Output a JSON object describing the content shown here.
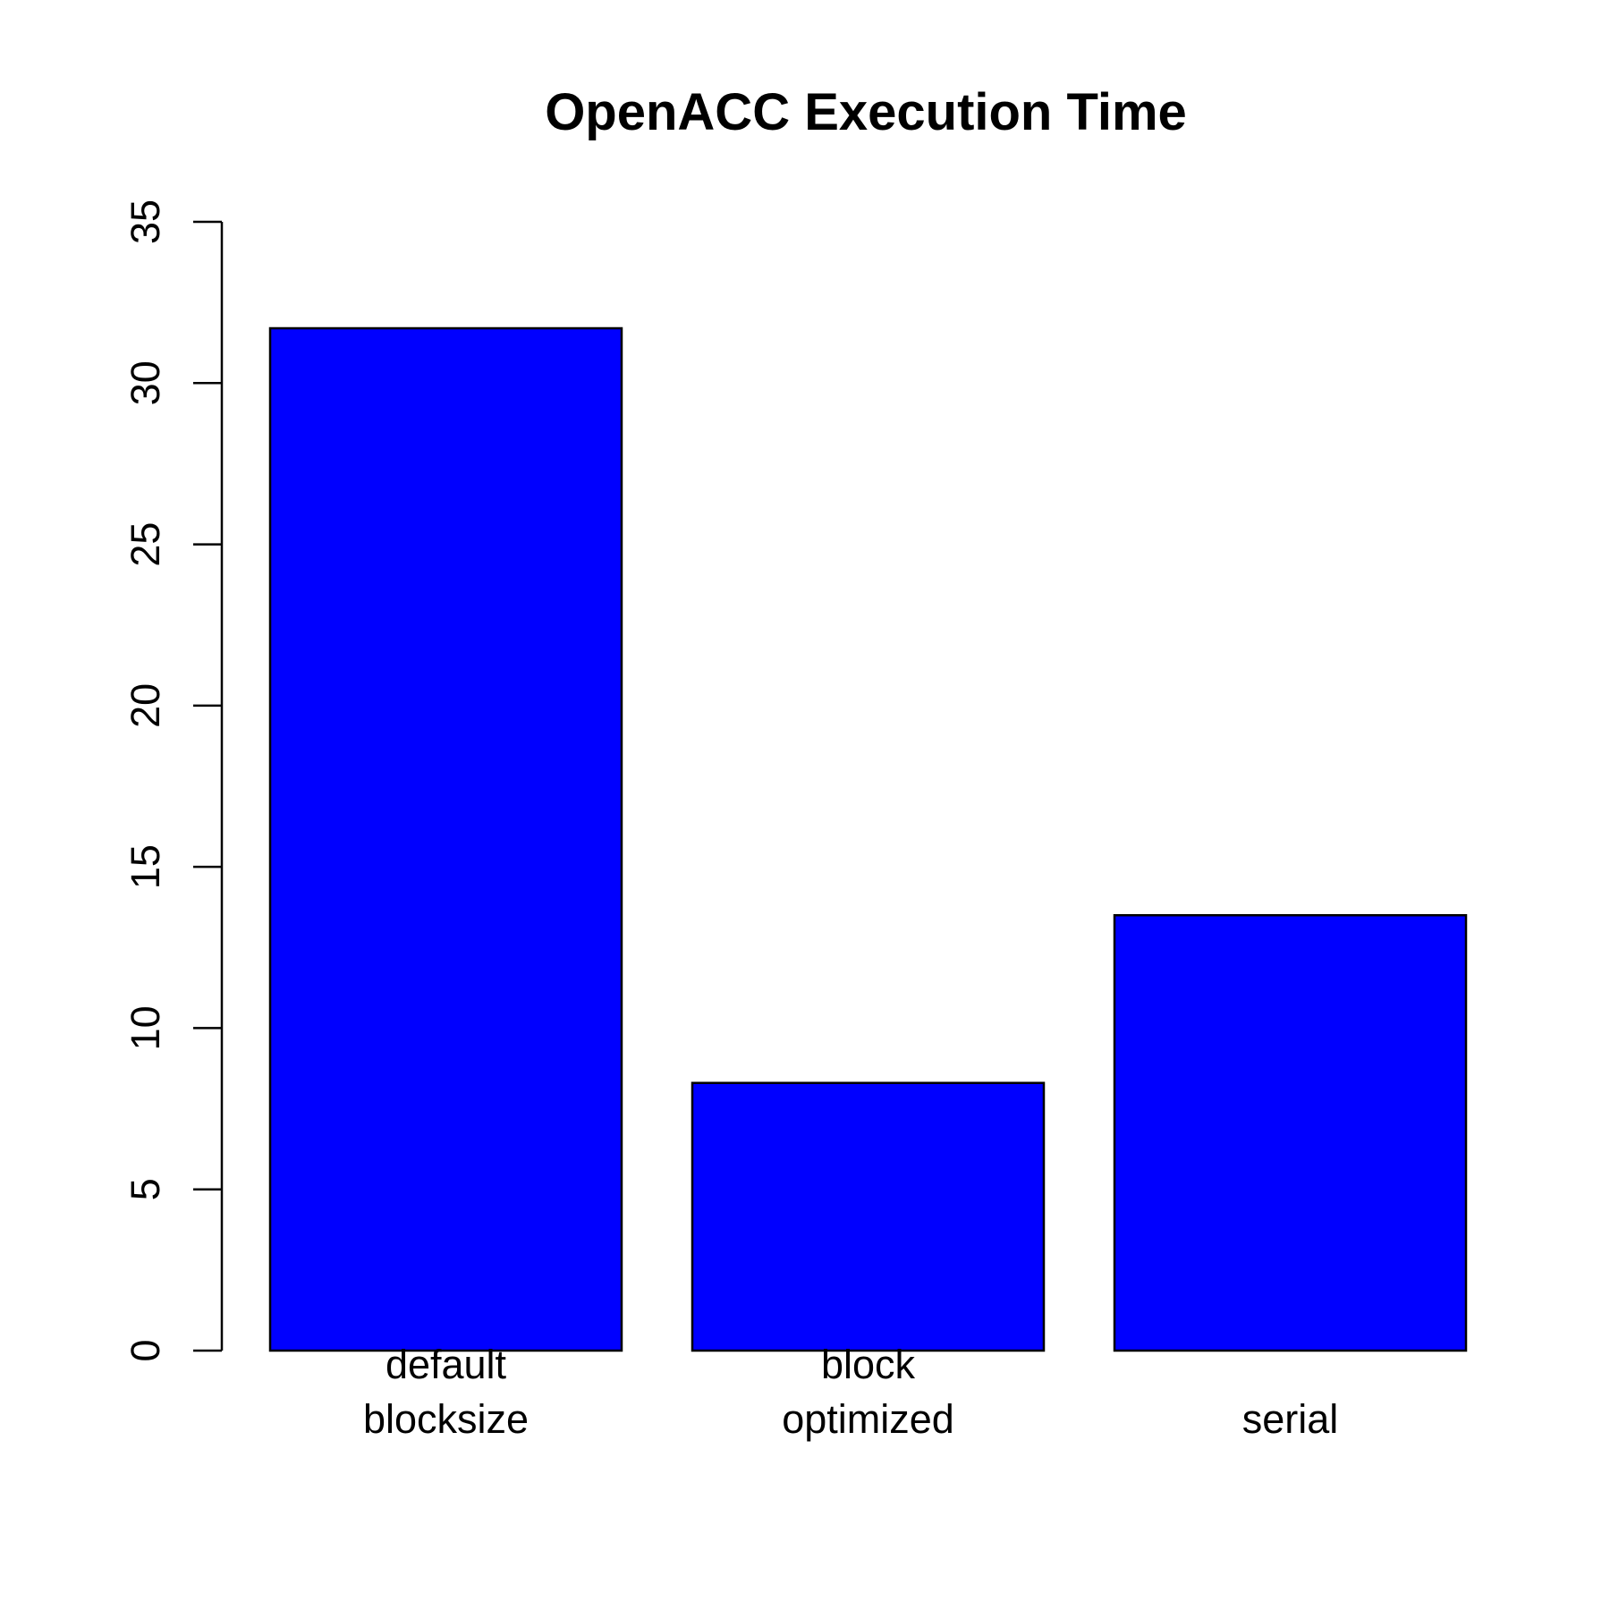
{
  "chart_data": {
    "type": "bar",
    "title": "OpenACC Execution Time",
    "xlabel": "",
    "ylabel": "",
    "categories": [
      [
        "default",
        "blocksize"
      ],
      [
        "block",
        "optimized"
      ],
      [
        "serial"
      ]
    ],
    "values": [
      31.7,
      8.3,
      13.5
    ],
    "ylim": [
      0,
      35
    ],
    "yticks": [
      0,
      5,
      10,
      15,
      20,
      25,
      30,
      35
    ],
    "grid": false,
    "legend": "none",
    "colors": {
      "bar_fill": "#0000ff",
      "bar_stroke": "#000000",
      "axis": "#000000",
      "text": "#000000",
      "background": "#ffffff"
    }
  }
}
